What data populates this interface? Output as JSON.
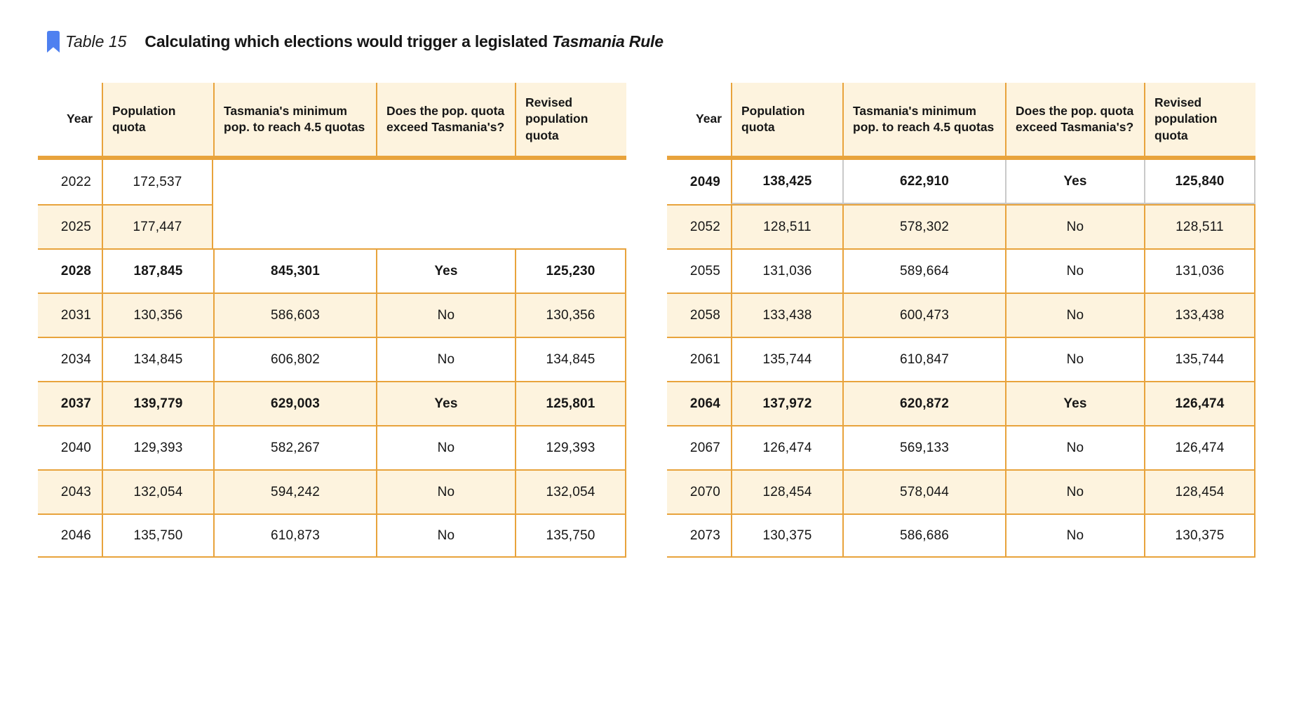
{
  "title": {
    "label": "Table 15",
    "text": "Calculating which elections would trigger a legislated",
    "emphasis": "Tasmania Rule"
  },
  "columns": [
    "Year",
    "Population quota",
    "Tasmania's minimum pop. to reach 4.5 quotas",
    "Does the pop. quota exceed Tasmania's?",
    "Revised population quota"
  ],
  "tables": [
    {
      "name": "elections-2022-2046",
      "rows": [
        {
          "year": "2022",
          "population_quota": "172,537",
          "min_pop": "",
          "exceeds": "",
          "revised": "",
          "bold": false,
          "blank_tail": true,
          "muted_borders": false
        },
        {
          "year": "2025",
          "population_quota": "177,447",
          "min_pop": "",
          "exceeds": "",
          "revised": "",
          "bold": false,
          "blank_tail": true,
          "muted_borders": false
        },
        {
          "year": "2028",
          "population_quota": "187,845",
          "min_pop": "845,301",
          "exceeds": "Yes",
          "revised": "125,230",
          "bold": true,
          "blank_tail": false,
          "muted_borders": false
        },
        {
          "year": "2031",
          "population_quota": "130,356",
          "min_pop": "586,603",
          "exceeds": "No",
          "revised": "130,356",
          "bold": false,
          "blank_tail": false,
          "muted_borders": false
        },
        {
          "year": "2034",
          "population_quota": "134,845",
          "min_pop": "606,802",
          "exceeds": "No",
          "revised": "134,845",
          "bold": false,
          "blank_tail": false,
          "muted_borders": false
        },
        {
          "year": "2037",
          "population_quota": "139,779",
          "min_pop": "629,003",
          "exceeds": "Yes",
          "revised": "125,801",
          "bold": true,
          "blank_tail": false,
          "muted_borders": false
        },
        {
          "year": "2040",
          "population_quota": "129,393",
          "min_pop": "582,267",
          "exceeds": "No",
          "revised": "129,393",
          "bold": false,
          "blank_tail": false,
          "muted_borders": false
        },
        {
          "year": "2043",
          "population_quota": "132,054",
          "min_pop": "594,242",
          "exceeds": "No",
          "revised": "132,054",
          "bold": false,
          "blank_tail": false,
          "muted_borders": false
        },
        {
          "year": "2046",
          "population_quota": "135,750",
          "min_pop": "610,873",
          "exceeds": "No",
          "revised": "135,750",
          "bold": false,
          "blank_tail": false,
          "muted_borders": false
        }
      ]
    },
    {
      "name": "elections-2049-2073",
      "rows": [
        {
          "year": "2049",
          "population_quota": "138,425",
          "min_pop": "622,910",
          "exceeds": "Yes",
          "revised": "125,840",
          "bold": true,
          "blank_tail": false,
          "muted_borders": true
        },
        {
          "year": "2052",
          "population_quota": "128,511",
          "min_pop": "578,302",
          "exceeds": "No",
          "revised": "128,511",
          "bold": false,
          "blank_tail": false,
          "muted_borders": false
        },
        {
          "year": "2055",
          "population_quota": "131,036",
          "min_pop": "589,664",
          "exceeds": "No",
          "revised": "131,036",
          "bold": false,
          "blank_tail": false,
          "muted_borders": false
        },
        {
          "year": "2058",
          "population_quota": "133,438",
          "min_pop": "600,473",
          "exceeds": "No",
          "revised": "133,438",
          "bold": false,
          "blank_tail": false,
          "muted_borders": false
        },
        {
          "year": "2061",
          "population_quota": "135,744",
          "min_pop": "610,847",
          "exceeds": "No",
          "revised": "135,744",
          "bold": false,
          "blank_tail": false,
          "muted_borders": false
        },
        {
          "year": "2064",
          "population_quota": "137,972",
          "min_pop": "620,872",
          "exceeds": "Yes",
          "revised": "126,474",
          "bold": true,
          "blank_tail": false,
          "muted_borders": false
        },
        {
          "year": "2067",
          "population_quota": "126,474",
          "min_pop": "569,133",
          "exceeds": "No",
          "revised": "126,474",
          "bold": false,
          "blank_tail": false,
          "muted_borders": false
        },
        {
          "year": "2070",
          "population_quota": "128,454",
          "min_pop": "578,044",
          "exceeds": "No",
          "revised": "128,454",
          "bold": false,
          "blank_tail": false,
          "muted_borders": false
        },
        {
          "year": "2073",
          "population_quota": "130,375",
          "min_pop": "586,686",
          "exceeds": "No",
          "revised": "130,375",
          "bold": false,
          "blank_tail": false,
          "muted_borders": false
        }
      ]
    }
  ],
  "colors": {
    "accent_orange": "#E8A33C",
    "row_cream": "#FDF3DE",
    "muted_border": "#C9C9C9",
    "bookmark_blue": "#4E80F0",
    "text": "#161616"
  }
}
